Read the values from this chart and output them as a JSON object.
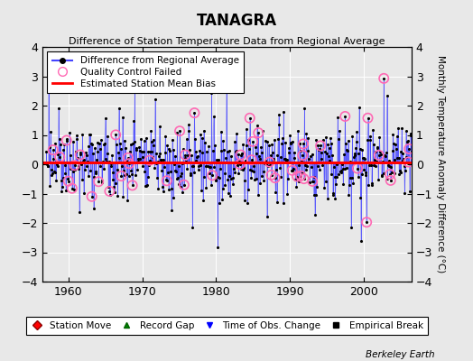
{
  "title": "TANAGRA",
  "subtitle": "Difference of Station Temperature Data from Regional Average",
  "ylabel_right": "Monthly Temperature Anomaly Difference (°C)",
  "ylim": [
    -4,
    4
  ],
  "xlim": [
    1956.5,
    2006.5
  ],
  "xticks": [
    1960,
    1970,
    1980,
    1990,
    2000
  ],
  "yticks": [
    -4,
    -3,
    -2,
    -1,
    0,
    1,
    2,
    3,
    4
  ],
  "mean_bias": 0.05,
  "line_color": "#4444ff",
  "dot_color": "#000000",
  "bias_color": "#ff0000",
  "qc_color": "#ff69b4",
  "background_color": "#e8e8e8",
  "plot_bg_color": "#e8e8e8",
  "grid_color": "#ffffff",
  "watermark": "Berkeley Earth",
  "legend1_items": [
    "Difference from Regional Average",
    "Quality Control Failed",
    "Estimated Station Mean Bias"
  ],
  "legend2_items": [
    "Station Move",
    "Record Gap",
    "Time of Obs. Change",
    "Empirical Break"
  ],
  "seed": 42,
  "n_years": 50,
  "start_year": 1957,
  "months_per_year": 12,
  "title_fontsize": 12,
  "subtitle_fontsize": 8,
  "tick_fontsize": 9,
  "legend_fontsize": 7.5,
  "ylabel_fontsize": 7.5
}
